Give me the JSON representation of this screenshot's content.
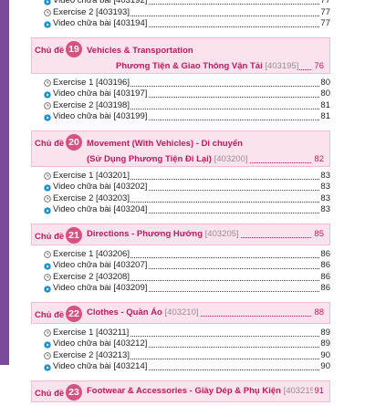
{
  "top_entries": [
    {
      "icon": "play",
      "label": "Video chữa bài [403192]",
      "page": "77"
    },
    {
      "icon": "clock",
      "label": "Exercise 2 [403193]",
      "page": "77"
    },
    {
      "icon": "play",
      "label": "Video chữa bài [403194]",
      "page": "77"
    }
  ],
  "topics": [
    {
      "prefix": "Chủ đề",
      "number": "19",
      "title_1": "Vehicles & Transportation",
      "title_2": "Phương Tiện & Giao Thông Vận Tải",
      "code": "[403195]",
      "page": "76",
      "entries": [
        {
          "icon": "clock",
          "label": "Exercise 1 [403196]",
          "page": "80"
        },
        {
          "icon": "play",
          "label": "Video chữa bài [403197]",
          "page": "80"
        },
        {
          "icon": "clock",
          "label": "Exercise 2 [403198]",
          "page": "81"
        },
        {
          "icon": "play",
          "label": "Video chữa bài [403199]",
          "page": "81"
        }
      ]
    },
    {
      "prefix": "Chủ đề",
      "number": "20",
      "title_1": "Movement (With Vehicles) - Di chuyển",
      "title_2": "(Sử Dụng Phương Tiện Đi Lại)",
      "code": "[403200]",
      "page": "82",
      "entries": [
        {
          "icon": "clock",
          "label": "Exercise 1 [403201]",
          "page": "83"
        },
        {
          "icon": "play",
          "label": "Video chữa bài [403202]",
          "page": "83"
        },
        {
          "icon": "clock",
          "label": "Exercise 2 [403203]",
          "page": "83"
        },
        {
          "icon": "play",
          "label": "Video chữa bài [403204]",
          "page": "83"
        }
      ]
    },
    {
      "prefix": "Chủ đề",
      "number": "21",
      "title_1": "Directions - Phương Hướng",
      "code": "[403205]",
      "page": "85",
      "entries": [
        {
          "icon": "clock",
          "label": "Exercise 1 [403206]",
          "page": "86"
        },
        {
          "icon": "play",
          "label": "Video chữa bài [403207]",
          "page": "86"
        },
        {
          "icon": "clock",
          "label": "Exercise 2 [403208]",
          "page": "86"
        },
        {
          "icon": "play",
          "label": "Video chữa bài [403209]",
          "page": "86"
        }
      ]
    },
    {
      "prefix": "Chủ đề",
      "number": "22",
      "title_1": "Clothes - Quần Áo",
      "code": "[403210]",
      "page": "88",
      "entries": [
        {
          "icon": "clock",
          "label": "Exercise 1 [403211]",
          "page": "89"
        },
        {
          "icon": "play",
          "label": "Video chữa bài [403212]",
          "page": "89"
        },
        {
          "icon": "clock",
          "label": "Exercise 2 [403213]",
          "page": "90"
        },
        {
          "icon": "play",
          "label": "Video chữa bài [403214]",
          "page": "90"
        }
      ]
    },
    {
      "prefix": "Chủ đề",
      "number": "23",
      "title_1": "Footwear & Accessories - Giày Dép & Phụ Kiện",
      "code": "[403215]",
      "page": "91",
      "entries": []
    }
  ],
  "colors": {
    "accent": "#c2185b",
    "band": "#fbe3ee",
    "badge": "#d4537f",
    "spine": "#7b4a9b",
    "play": "#1a8fc9"
  }
}
